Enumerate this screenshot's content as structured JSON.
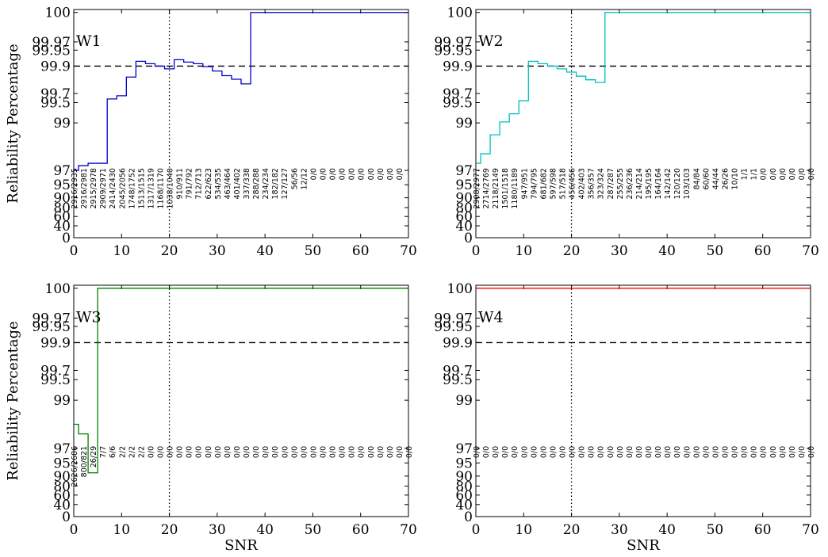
{
  "chart_data": [
    {
      "type": "line",
      "title": "W1",
      "color": "#0000cc",
      "xlabel": "",
      "ylabel": "Reliability Percentage",
      "xlim": [
        0,
        70
      ],
      "x_ticks": [
        "0",
        "10",
        "20",
        "30",
        "40",
        "50",
        "60",
        "70"
      ],
      "y_ticks": [
        "0",
        "40",
        "60",
        "80",
        "90",
        "95",
        "97",
        "99",
        "99.5",
        "99.7",
        "99.9",
        "99.95",
        "99.97",
        "100"
      ],
      "y_ticks_rank": [
        0,
        1,
        2,
        3,
        4,
        5,
        6,
        7,
        8,
        9,
        10,
        11,
        12,
        13
      ],
      "y_scale": "nonlinear (reliability); tick labels at rank positions",
      "threshold_y": "99.9",
      "vline_x": 20,
      "x": [
        0,
        1,
        3,
        7,
        9,
        11,
        13,
        15,
        17,
        19,
        21,
        23,
        25,
        27,
        29,
        31,
        33,
        35,
        37,
        39,
        41,
        43,
        45,
        47,
        49,
        51,
        53,
        55,
        57,
        59,
        61,
        63,
        65,
        67,
        69,
        70
      ],
      "y_rank": [
        6.0,
        6.1,
        6.15,
        8.4,
        8.75,
        9.6,
        10.3,
        10.15,
        10.0,
        9.9,
        10.4,
        10.25,
        10.15,
        9.98,
        9.82,
        9.65,
        9.52,
        9.35,
        13.0,
        13.0,
        13.0,
        13.0,
        13.0,
        13.0,
        13.0,
        13.0,
        13.0,
        13.0,
        13.0,
        13.0,
        13.0,
        13.0,
        13.0,
        13.0,
        13.0,
        13.0
      ],
      "counts": [
        "2916/2935",
        "2916/2981",
        "2915/2978",
        "2909/2971",
        "2414/2430",
        "2045/2056",
        "1748/1752",
        "1513/1515",
        "1317/1319",
        "1168/1170",
        "1038/1040",
        "910/911",
        "791/792",
        "712/713",
        "622/623",
        "534/535",
        "463/464",
        "401/402",
        "337/338",
        "288/288",
        "234/234",
        "182/182",
        "127/127",
        "56/56",
        "12/12",
        "0/0",
        "0/0",
        "0/0",
        "0/0",
        "0/0",
        "0/0",
        "0/0",
        "0/0",
        "0/0",
        "0/0"
      ]
    },
    {
      "type": "line",
      "title": "W2",
      "color": "#00bfbf",
      "xlabel": "",
      "ylabel": "",
      "xlim": [
        0,
        70
      ],
      "x_ticks": [
        "0",
        "10",
        "20",
        "30",
        "40",
        "50",
        "60",
        "70"
      ],
      "y_ticks": [
        "0",
        "40",
        "60",
        "80",
        "90",
        "95",
        "97",
        "99",
        "99.5",
        "99.7",
        "99.9",
        "99.95",
        "99.97",
        "100"
      ],
      "y_ticks_rank": [
        0,
        1,
        2,
        3,
        4,
        5,
        6,
        7,
        8,
        9,
        10,
        11,
        12,
        13
      ],
      "threshold_y": "99.9",
      "vline_x": 20,
      "x": [
        0,
        1,
        3,
        5,
        7,
        9,
        11,
        13,
        15,
        17,
        19,
        21,
        23,
        25,
        27,
        29,
        31,
        33,
        35,
        37,
        39,
        41,
        43,
        45,
        47,
        49,
        51,
        53,
        55,
        57,
        59,
        61,
        63,
        65,
        67,
        69,
        70
      ],
      "y_rank": [
        6.15,
        6.35,
        6.75,
        7.05,
        7.45,
        8.2,
        10.3,
        10.15,
        10.0,
        9.9,
        9.78,
        9.63,
        9.5,
        9.4,
        13.0,
        13.0,
        13.0,
        13.0,
        13.0,
        13.0,
        13.0,
        13.0,
        13.0,
        13.0,
        13.0,
        13.0,
        13.0,
        13.0,
        13.0,
        13.0,
        13.0,
        13.0,
        13.0,
        13.0,
        13.0,
        13.0,
        13.0
      ],
      "counts": [
        "2908/2977",
        "2714/2769",
        "2118/2149",
        "1501/1518",
        "1180/1189",
        "947/951",
        "794/795",
        "681/682",
        "597/598",
        "517/518",
        "456/456",
        "402/403",
        "356/357",
        "323/324",
        "287/287",
        "255/255",
        "236/236",
        "214/214",
        "195/195",
        "164/164",
        "142/142",
        "120/120",
        "103/103",
        "84/84",
        "60/60",
        "44/44",
        "26/26",
        "10/10",
        "1/1",
        "1/1",
        "0/0",
        "0/0",
        "0/0",
        "0/0",
        "0/0",
        "0/0"
      ]
    },
    {
      "type": "line",
      "title": "W3",
      "color": "#007f00",
      "xlabel": "SNR",
      "ylabel": "Reliability Percentage",
      "xlim": [
        0,
        70
      ],
      "x_ticks": [
        "0",
        "10",
        "20",
        "30",
        "40",
        "50",
        "60",
        "70"
      ],
      "y_ticks": [
        "0",
        "40",
        "60",
        "80",
        "90",
        "95",
        "97",
        "99",
        "99.5",
        "99.7",
        "99.9",
        "99.95",
        "99.97",
        "100"
      ],
      "y_ticks_rank": [
        0,
        1,
        2,
        3,
        4,
        5,
        6,
        7,
        8,
        9,
        10,
        11,
        12,
        13
      ],
      "threshold_y": "99.9",
      "vline_x": 20,
      "x": [
        0,
        1,
        3,
        5,
        7,
        9,
        11,
        13,
        15,
        17,
        19,
        21,
        23,
        25,
        27,
        29,
        31,
        33,
        35,
        37,
        39,
        41,
        43,
        45,
        47,
        49,
        51,
        53,
        55,
        57,
        59,
        61,
        63,
        65,
        67,
        69,
        70
      ],
      "y_rank": [
        6.5,
        6.3,
        4.25,
        13.0,
        13.0,
        13.0,
        13.0,
        13.0,
        13.0,
        13.0,
        13.0,
        13.0,
        13.0,
        13.0,
        13.0,
        13.0,
        13.0,
        13.0,
        13.0,
        13.0,
        13.0,
        13.0,
        13.0,
        13.0,
        13.0,
        13.0,
        13.0,
        13.0,
        13.0,
        13.0,
        13.0,
        13.0,
        13.0,
        13.0,
        13.0,
        13.0,
        13.0
      ],
      "counts": [
        "2626/2686",
        "800/821",
        "26/29",
        "7/7",
        "6/6",
        "2/2",
        "2/2",
        "2/2",
        "0/0",
        "0/0",
        "0/0",
        "0/0",
        "0/0",
        "0/0",
        "0/0",
        "0/0",
        "0/0",
        "0/0",
        "0/0",
        "0/0",
        "0/0",
        "0/0",
        "0/0",
        "0/0",
        "0/0",
        "0/0",
        "0/0",
        "0/0",
        "0/0",
        "0/0",
        "0/0",
        "0/0",
        "0/0",
        "0/0",
        "0/0",
        "0/0"
      ]
    },
    {
      "type": "line",
      "title": "W4",
      "color": "#ff0000",
      "xlabel": "SNR",
      "ylabel": "",
      "xlim": [
        0,
        70
      ],
      "x_ticks": [
        "0",
        "10",
        "20",
        "30",
        "40",
        "50",
        "60",
        "70"
      ],
      "y_ticks": [
        "0",
        "40",
        "60",
        "80",
        "90",
        "95",
        "97",
        "99",
        "99.5",
        "99.7",
        "99.9",
        "99.95",
        "99.97",
        "100"
      ],
      "y_ticks_rank": [
        0,
        1,
        2,
        3,
        4,
        5,
        6,
        7,
        8,
        9,
        10,
        11,
        12,
        13
      ],
      "threshold_y": "99.9",
      "vline_x": 20,
      "x": [
        0,
        70
      ],
      "y_rank": [
        13.0,
        13.0
      ],
      "counts": [
        "0/0",
        "0/0",
        "0/0",
        "0/0",
        "0/0",
        "0/0",
        "0/0",
        "0/0",
        "0/0",
        "0/0",
        "0/0",
        "0/0",
        "0/0",
        "0/0",
        "0/0",
        "0/0",
        "0/0",
        "0/0",
        "0/0",
        "0/0",
        "0/0",
        "0/0",
        "0/0",
        "0/0",
        "0/0",
        "0/0",
        "0/0",
        "0/0",
        "0/0",
        "0/0",
        "0/0",
        "0/0",
        "0/0",
        "0/0",
        "0/0",
        "0/0"
      ]
    }
  ]
}
